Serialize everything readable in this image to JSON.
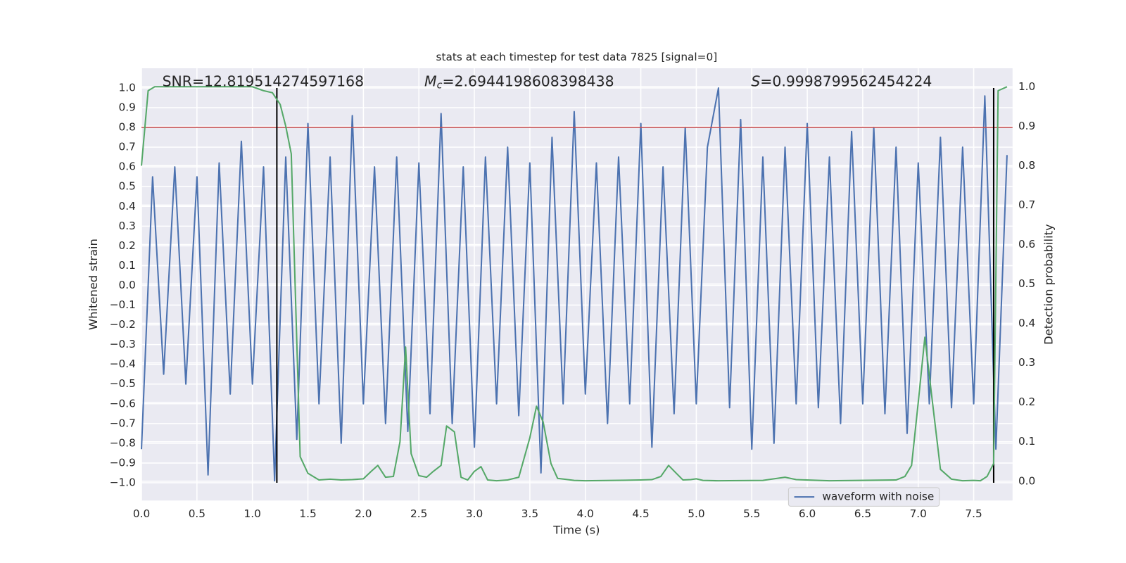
{
  "chart_data": {
    "type": "line",
    "title": "stats at each timestep for test data 7825 [signal=0]",
    "xlabel": "Time (s)",
    "ylabel": "Whitened strain",
    "y2label": "Detection probability",
    "annotations": {
      "snr": "SNR=12.819514274597168",
      "mc_symbol": "M",
      "mc_subscript": "c",
      "mc_text": "=2.6944198608398438",
      "s_symbol": "S",
      "s_text": "=0.9998799562454224"
    },
    "xlim": [
      0,
      7.85
    ],
    "ylim": [
      -1.09,
      1.1
    ],
    "y2lim": [
      -0.049,
      1.047
    ],
    "grid": true,
    "legend": "lower right",
    "xticks": [
      {
        "value": 0,
        "label": "0.0"
      },
      {
        "value": 0.5,
        "label": "0.5"
      },
      {
        "value": 1,
        "label": "1.0"
      },
      {
        "value": 1.5,
        "label": "1.5"
      },
      {
        "value": 2,
        "label": "2.0"
      },
      {
        "value": 2.5,
        "label": "2.5"
      },
      {
        "value": 3,
        "label": "3.0"
      },
      {
        "value": 3.5,
        "label": "3.5"
      },
      {
        "value": 4,
        "label": "4.0"
      },
      {
        "value": 4.5,
        "label": "4.5"
      },
      {
        "value": 5,
        "label": "5.0"
      },
      {
        "value": 5.5,
        "label": "5.5"
      },
      {
        "value": 6,
        "label": "6.0"
      },
      {
        "value": 6.5,
        "label": "6.5"
      },
      {
        "value": 7,
        "label": "7.0"
      },
      {
        "value": 7.5,
        "label": "7.5"
      }
    ],
    "yticks": [
      {
        "value": -1,
        "label": "−1.0"
      },
      {
        "value": -0.9,
        "label": "−0.9"
      },
      {
        "value": -0.8,
        "label": "−0.8"
      },
      {
        "value": -0.7,
        "label": "−0.7"
      },
      {
        "value": -0.6,
        "label": "−0.6"
      },
      {
        "value": -0.5,
        "label": "−0.5"
      },
      {
        "value": -0.4,
        "label": "−0.4"
      },
      {
        "value": -0.3,
        "label": "−0.3"
      },
      {
        "value": -0.2,
        "label": "−0.2"
      },
      {
        "value": -0.1,
        "label": "−0.1"
      },
      {
        "value": 0,
        "label": "0.0"
      },
      {
        "value": 0.1,
        "label": "0.1"
      },
      {
        "value": 0.2,
        "label": "0.2"
      },
      {
        "value": 0.3,
        "label": "0.3"
      },
      {
        "value": 0.4,
        "label": "0.4"
      },
      {
        "value": 0.5,
        "label": "0.5"
      },
      {
        "value": 0.6,
        "label": "0.6"
      },
      {
        "value": 0.7,
        "label": "0.7"
      },
      {
        "value": 0.8,
        "label": "0.8"
      },
      {
        "value": 0.9,
        "label": "0.9"
      },
      {
        "value": 1,
        "label": "1.0"
      }
    ],
    "y2ticks": [
      {
        "value": 0,
        "label": "0.0"
      },
      {
        "value": 0.1,
        "label": "0.1"
      },
      {
        "value": 0.2,
        "label": "0.2"
      },
      {
        "value": 0.3,
        "label": "0.3"
      },
      {
        "value": 0.4,
        "label": "0.4"
      },
      {
        "value": 0.5,
        "label": "0.5"
      },
      {
        "value": 0.6,
        "label": "0.6"
      },
      {
        "value": 0.7,
        "label": "0.7"
      },
      {
        "value": 0.8,
        "label": "0.8"
      },
      {
        "value": 0.9,
        "label": "0.9"
      },
      {
        "value": 1,
        "label": "1.0"
      }
    ],
    "series": [
      {
        "name": "waveform with noise",
        "color": "#4c72b0",
        "x": [
          0,
          0.1,
          0.2,
          0.3,
          0.4,
          0.5,
          0.6,
          0.7,
          0.8,
          0.9,
          1,
          1.1,
          1.2,
          1.3,
          1.4,
          1.5,
          1.6,
          1.7,
          1.8,
          1.9,
          2,
          2.1,
          2.2,
          2.3,
          2.4,
          2.5,
          2.6,
          2.7,
          2.8,
          2.9,
          3,
          3.1,
          3.2,
          3.3,
          3.4,
          3.5,
          3.6,
          3.7,
          3.8,
          3.9,
          4,
          4.1,
          4.2,
          4.3,
          4.4,
          4.5,
          4.6,
          4.7,
          4.8,
          4.9,
          5,
          5.1,
          5.2,
          5.3,
          5.4,
          5.5,
          5.6,
          5.7,
          5.8,
          5.9,
          6,
          6.1,
          6.2,
          6.3,
          6.4,
          6.5,
          6.6,
          6.7,
          6.8,
          6.9,
          7,
          7.1,
          7.2,
          7.3,
          7.4,
          7.5,
          7.6,
          7.7,
          7.8
        ],
        "values": [
          -0.83,
          0.55,
          -0.45,
          0.6,
          -0.5,
          0.55,
          -0.96,
          0.62,
          -0.55,
          0.73,
          -0.5,
          0.6,
          -0.99,
          0.65,
          -0.78,
          0.82,
          -0.6,
          0.65,
          -0.8,
          0.86,
          -0.6,
          0.6,
          -0.7,
          0.65,
          -0.74,
          0.62,
          -0.65,
          0.87,
          -0.7,
          0.6,
          -0.82,
          0.65,
          -0.6,
          0.7,
          -0.66,
          0.62,
          -0.95,
          0.75,
          -0.6,
          0.88,
          -0.55,
          0.62,
          -0.7,
          0.65,
          -0.6,
          0.82,
          -0.82,
          0.6,
          -0.65,
          0.8,
          -0.6,
          0.7,
          1.0,
          -0.62,
          0.84,
          -0.83,
          0.65,
          -0.8,
          0.7,
          -0.6,
          0.82,
          -0.62,
          0.65,
          -0.7,
          0.78,
          -0.6,
          0.8,
          -0.65,
          0.7,
          -0.75,
          0.62,
          -0.6,
          0.75,
          -0.62,
          0.7,
          -0.6,
          0.96,
          -0.83,
          0.66
        ]
      }
    ],
    "probability": {
      "color": "#55a868",
      "axis": "y2",
      "x": [
        0,
        0.06,
        0.12,
        0.5,
        1,
        1.1,
        1.18,
        1.25,
        1.3,
        1.35,
        1.43,
        1.5,
        1.6,
        1.7,
        1.8,
        1.9,
        2,
        2.07,
        2.13,
        2.2,
        2.27,
        2.33,
        2.38,
        2.43,
        2.5,
        2.57,
        2.63,
        2.7,
        2.75,
        2.82,
        2.88,
        2.94,
        3,
        3.06,
        3.12,
        3.2,
        3.3,
        3.4,
        3.5,
        3.56,
        3.62,
        3.69,
        3.75,
        3.9,
        4,
        4.5,
        4.6,
        4.68,
        4.75,
        4.82,
        4.88,
        4.95,
        5,
        5.06,
        5.2,
        5.6,
        5.8,
        5.9,
        6.2,
        6.8,
        6.88,
        6.94,
        7,
        7.06,
        7.12,
        7.2,
        7.3,
        7.4,
        7.5,
        7.56,
        7.62,
        7.68,
        7.72,
        7.8
      ],
      "values": [
        0.8,
        0.99,
        1.0,
        1.0,
        1.0,
        0.99,
        0.985,
        0.955,
        0.9,
        0.83,
        0.062,
        0.02,
        0.003,
        0.005,
        0.003,
        0.004,
        0.006,
        0.025,
        0.04,
        0.01,
        0.012,
        0.1,
        0.34,
        0.07,
        0.014,
        0.01,
        0.025,
        0.04,
        0.14,
        0.125,
        0.01,
        0.003,
        0.025,
        0.037,
        0.003,
        0.001,
        0.003,
        0.01,
        0.11,
        0.19,
        0.15,
        0.045,
        0.007,
        0.002,
        0.001,
        0.003,
        0.004,
        0.012,
        0.04,
        0.02,
        0.003,
        0.004,
        0.006,
        0.002,
        0.001,
        0.002,
        0.01,
        0.004,
        0.001,
        0.003,
        0.012,
        0.04,
        0.2,
        0.365,
        0.22,
        0.03,
        0.005,
        0.001,
        0.002,
        0.001,
        0.012,
        0.045,
        0.99,
        1.0
      ]
    },
    "threshold": {
      "value": 0.8,
      "color": "#c44e52"
    },
    "vlines": {
      "x": [
        1.22,
        7.68
      ],
      "color": "#000000"
    }
  }
}
